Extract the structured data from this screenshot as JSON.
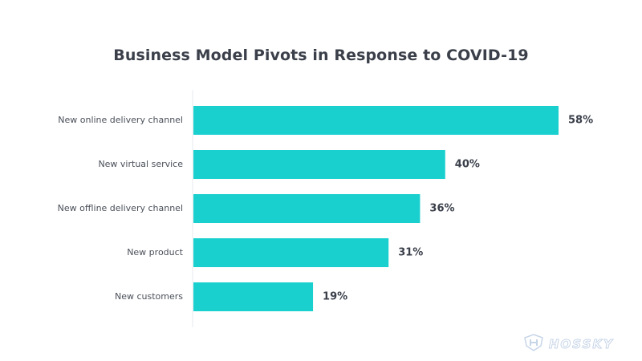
{
  "colors": {
    "bar": "#1ad0cf",
    "axis": "#e6e8ec"
  },
  "watermark": {
    "text": "HOSSKY",
    "icon": "shield-logo-icon"
  },
  "chart_data": {
    "type": "bar",
    "orientation": "horizontal",
    "title": "Business Model Pivots in Response to COVID-19",
    "categories": [
      "New online delivery channel",
      "New virtual service",
      "New offline delivery channel",
      "New product",
      "New customers"
    ],
    "values": [
      58,
      40,
      36,
      31,
      19
    ],
    "value_labels": [
      "58%",
      "40%",
      "36%",
      "31%",
      "19%"
    ],
    "xlim": [
      0,
      58
    ],
    "xlabel": "",
    "ylabel": "",
    "grid": false,
    "legend": "none"
  }
}
